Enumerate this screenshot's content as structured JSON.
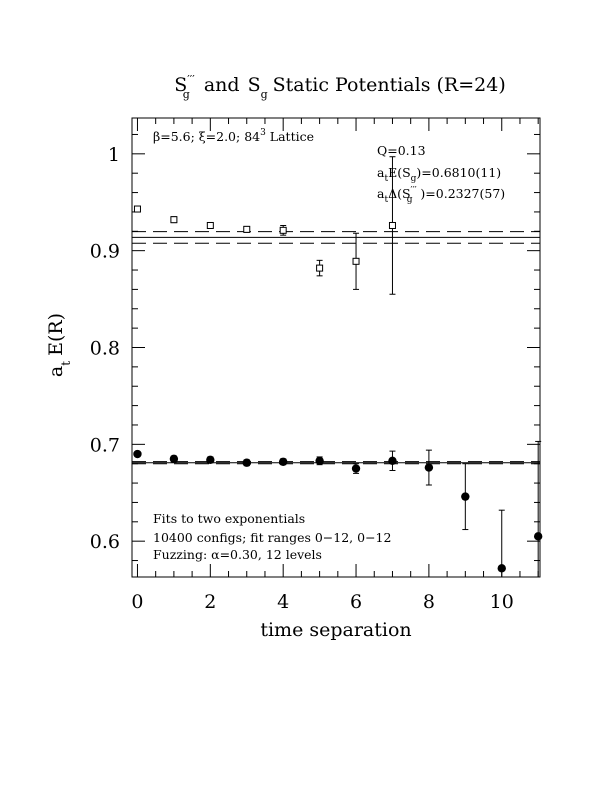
{
  "chart_data": {
    "type": "scatter",
    "title_parts": {
      "s1": "S",
      "s1_sup": "′′′",
      "s1_sub": "g",
      "mid": "and",
      "s2": "S",
      "s2_sub": "g",
      "rest": "Static Potentials (R=24)"
    },
    "xlabel": "time separation",
    "ylabel_parts": {
      "a": "a",
      "a_sub": "t",
      "rest": "E(R)"
    },
    "xlim": [
      -0.15,
      11.05
    ],
    "ylim": [
      0.563,
      1.037
    ],
    "x_ticks": [
      0,
      2,
      4,
      6,
      8,
      10
    ],
    "x_minor_step": 0.5,
    "y_ticks": [
      0.6,
      0.7,
      0.8,
      0.9,
      1.0
    ],
    "y_tick_labels": [
      "0.6",
      "0.7",
      "0.8",
      "0.9",
      "1"
    ],
    "y_minor_step": 0.02,
    "lattice_parts": {
      "beta": "β=5.6; ",
      "xi": "ξ=2.0; 84",
      "xi_sup": "3",
      "rest": " Lattice"
    },
    "fit_info": {
      "q": "Q=0.13",
      "e_a": "a",
      "e_sub_t": "t",
      "e_mid": "E(S",
      "e_sub_g": "g",
      "e_val": ")=0.6810(11)",
      "d_a": "a",
      "d_sub_t": "t",
      "d_mid": "Δ(S",
      "d_sub_g": "g",
      "d_sup": "′′′",
      "d_val": " )=0.2327(57)"
    },
    "notes": [
      "Fits to two exponentials",
      "10400 configs; fit ranges 0−12, 0−12",
      "Fuzzing: α=0.30, 12 levels"
    ],
    "series": [
      {
        "marker": "open-square",
        "points": [
          {
            "x": 0,
            "y": 0.943,
            "err": 0.002
          },
          {
            "x": 1,
            "y": 0.932,
            "err": 0.003
          },
          {
            "x": 2,
            "y": 0.926,
            "err": 0.003
          },
          {
            "x": 3,
            "y": 0.922,
            "err": 0.003
          },
          {
            "x": 4,
            "y": 0.921,
            "err": 0.005
          },
          {
            "x": 5,
            "y": 0.882,
            "err": 0.008
          },
          {
            "x": 6,
            "y": 0.889,
            "err": 0.029
          },
          {
            "x": 7,
            "y": 0.926,
            "err": 0.071
          }
        ],
        "fit_value": 0.9137,
        "fit_band": [
          0.9077,
          0.9197
        ]
      },
      {
        "marker": "filled-circle",
        "points": [
          {
            "x": 0,
            "y": 0.69,
            "err": 0.002
          },
          {
            "x": 1,
            "y": 0.685,
            "err": 0.003
          },
          {
            "x": 2,
            "y": 0.684,
            "err": 0.003
          },
          {
            "x": 3,
            "y": 0.681,
            "err": 0.003
          },
          {
            "x": 4,
            "y": 0.682,
            "err": 0.003
          },
          {
            "x": 5,
            "y": 0.683,
            "err": 0.004
          },
          {
            "x": 6,
            "y": 0.675,
            "err": 0.005
          },
          {
            "x": 7,
            "y": 0.683,
            "err": 0.01
          },
          {
            "x": 8,
            "y": 0.676,
            "err": 0.018
          },
          {
            "x": 9,
            "y": 0.646,
            "err": 0.034
          },
          {
            "x": 10,
            "y": 0.572,
            "err": 0.06
          },
          {
            "x": 11,
            "y": 0.605,
            "err": 0.098
          }
        ],
        "fit_value": 0.681,
        "fit_band": [
          0.6799,
          0.6821
        ]
      }
    ]
  }
}
